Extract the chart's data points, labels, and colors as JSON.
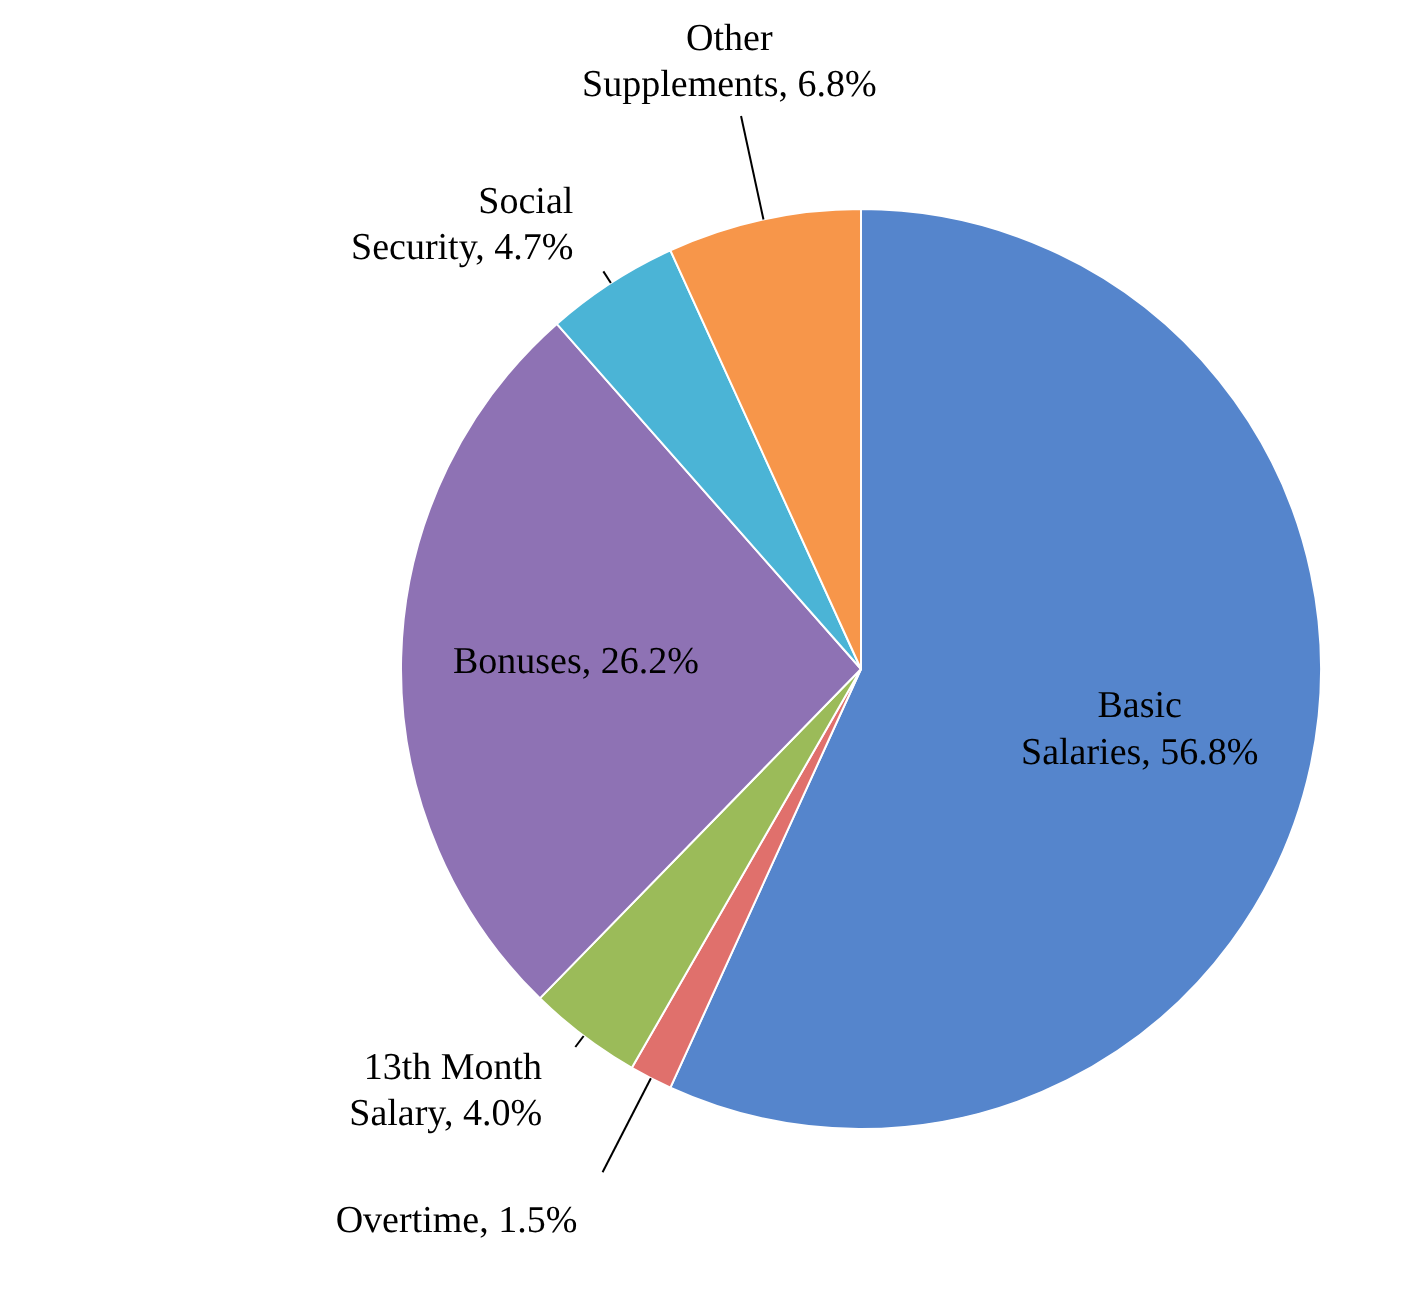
{
  "chart_data": {
    "type": "pie",
    "categories": [
      "Basic Salaries",
      "Overtime",
      "13th Month Salary",
      "Bonuses",
      "Social Security",
      "Other Supplements"
    ],
    "values": [
      56.8,
      1.5,
      4.0,
      26.2,
      4.7,
      6.8
    ],
    "value_labels": [
      "56.8%",
      "1.5%",
      "4.0%",
      "26.2%",
      "4.7%",
      "6.8%"
    ],
    "colors": [
      "#5585cc",
      "#e0706c",
      "#9bbb59",
      "#8e72b4",
      "#4bb4d6",
      "#f7964a"
    ]
  }
}
